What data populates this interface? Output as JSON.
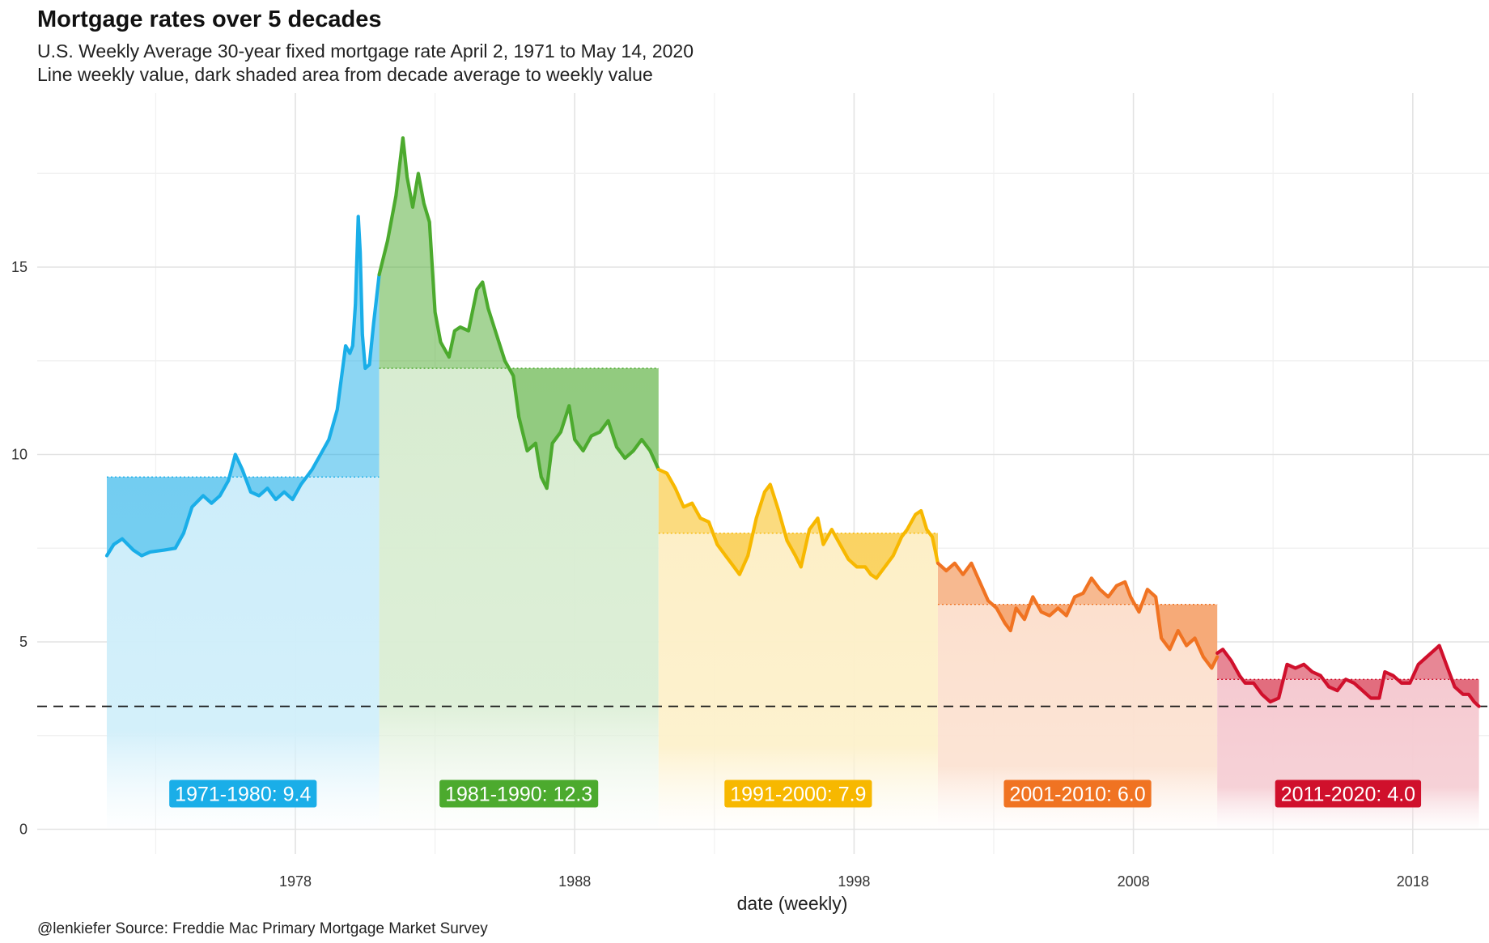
{
  "title": "Mortgage rates over 5 decades",
  "subtitle_line1": "U.S. Weekly Average 30-year fixed mortgage rate April 2, 1971 to May 14, 2020",
  "subtitle_line2": "Line weekly value, dark shaded area from decade average to weekly value",
  "caption": "@lenkiefer Source: Freddie Mac Primary Mortgage Market Survey",
  "chart_data": {
    "type": "line",
    "title": "Mortgage rates over 5 decades",
    "xlabel": "date (weekly)",
    "ylabel": "",
    "xlim": [
      1969.6,
      2022.9
    ],
    "ylim": [
      -0.8,
      19.7
    ],
    "x_ticks": [
      1978,
      1988,
      1998,
      2008,
      2018
    ],
    "x_tick_labels": [
      "1978",
      "1988",
      "1998",
      "2008",
      "2018"
    ],
    "y_ticks": [
      0,
      5,
      10,
      15
    ],
    "y_tick_labels": [
      "0",
      "5",
      "10",
      "15"
    ],
    "grid": true,
    "reference_line": {
      "value": 3.28,
      "style": "dashed"
    },
    "series": [
      {
        "name": "1971-1980",
        "label": "1971-1980:  9.4",
        "average": 9.4,
        "color": "#1aaee8",
        "start": 1971.25,
        "end": 1981.0,
        "points": [
          [
            1971.25,
            7.3
          ],
          [
            1971.5,
            7.6
          ],
          [
            1971.8,
            7.75
          ],
          [
            1972.2,
            7.45
          ],
          [
            1972.5,
            7.3
          ],
          [
            1972.8,
            7.4
          ],
          [
            1973.3,
            7.45
          ],
          [
            1973.7,
            7.5
          ],
          [
            1974.0,
            7.9
          ],
          [
            1974.3,
            8.6
          ],
          [
            1974.7,
            8.9
          ],
          [
            1975.0,
            8.7
          ],
          [
            1975.3,
            8.9
          ],
          [
            1975.6,
            9.3
          ],
          [
            1975.85,
            10.0
          ],
          [
            1976.1,
            9.6
          ],
          [
            1976.4,
            9.0
          ],
          [
            1976.7,
            8.9
          ],
          [
            1977.0,
            9.1
          ],
          [
            1977.3,
            8.8
          ],
          [
            1977.6,
            9.0
          ],
          [
            1977.9,
            8.8
          ],
          [
            1978.2,
            9.2
          ],
          [
            1978.6,
            9.6
          ],
          [
            1978.9,
            10.0
          ],
          [
            1979.2,
            10.4
          ],
          [
            1979.5,
            11.2
          ],
          [
            1979.8,
            12.9
          ],
          [
            1979.95,
            12.7
          ],
          [
            1980.05,
            12.9
          ],
          [
            1980.15,
            14.0
          ],
          [
            1980.25,
            16.35
          ],
          [
            1980.32,
            15.4
          ],
          [
            1980.4,
            13.2
          ],
          [
            1980.5,
            12.3
          ],
          [
            1980.65,
            12.4
          ],
          [
            1980.8,
            13.5
          ],
          [
            1981.0,
            14.8
          ]
        ]
      },
      {
        "name": "1981-1990",
        "label": "1981-1990: 12.3",
        "average": 12.3,
        "color": "#4caa2e",
        "start": 1981.0,
        "end": 1991.0,
        "points": [
          [
            1981.0,
            14.8
          ],
          [
            1981.3,
            15.7
          ],
          [
            1981.6,
            16.9
          ],
          [
            1981.85,
            18.45
          ],
          [
            1982.0,
            17.4
          ],
          [
            1982.2,
            16.6
          ],
          [
            1982.4,
            17.5
          ],
          [
            1982.6,
            16.7
          ],
          [
            1982.8,
            16.2
          ],
          [
            1983.0,
            13.8
          ],
          [
            1983.2,
            13.0
          ],
          [
            1983.5,
            12.6
          ],
          [
            1983.7,
            13.3
          ],
          [
            1983.9,
            13.4
          ],
          [
            1984.2,
            13.3
          ],
          [
            1984.5,
            14.4
          ],
          [
            1984.7,
            14.6
          ],
          [
            1984.9,
            13.9
          ],
          [
            1985.2,
            13.2
          ],
          [
            1985.5,
            12.5
          ],
          [
            1985.8,
            12.1
          ],
          [
            1986.0,
            11.0
          ],
          [
            1986.3,
            10.1
          ],
          [
            1986.6,
            10.3
          ],
          [
            1986.8,
            9.4
          ],
          [
            1987.0,
            9.1
          ],
          [
            1987.2,
            10.3
          ],
          [
            1987.5,
            10.6
          ],
          [
            1987.8,
            11.3
          ],
          [
            1988.0,
            10.4
          ],
          [
            1988.3,
            10.1
          ],
          [
            1988.6,
            10.5
          ],
          [
            1988.9,
            10.6
          ],
          [
            1989.2,
            10.9
          ],
          [
            1989.5,
            10.2
          ],
          [
            1989.8,
            9.9
          ],
          [
            1990.1,
            10.1
          ],
          [
            1990.4,
            10.4
          ],
          [
            1990.7,
            10.1
          ],
          [
            1991.0,
            9.6
          ]
        ]
      },
      {
        "name": "1991-2000",
        "label": "1991-2000:  7.9",
        "average": 7.9,
        "color": "#f7b800",
        "start": 1991.0,
        "end": 2001.0,
        "points": [
          [
            1991.0,
            9.6
          ],
          [
            1991.3,
            9.5
          ],
          [
            1991.6,
            9.1
          ],
          [
            1991.9,
            8.6
          ],
          [
            1992.2,
            8.7
          ],
          [
            1992.5,
            8.3
          ],
          [
            1992.8,
            8.2
          ],
          [
            1993.1,
            7.6
          ],
          [
            1993.4,
            7.3
          ],
          [
            1993.7,
            7.0
          ],
          [
            1993.9,
            6.8
          ],
          [
            1994.2,
            7.3
          ],
          [
            1994.5,
            8.3
          ],
          [
            1994.8,
            9.0
          ],
          [
            1995.0,
            9.2
          ],
          [
            1995.3,
            8.5
          ],
          [
            1995.6,
            7.7
          ],
          [
            1995.9,
            7.3
          ],
          [
            1996.1,
            7.0
          ],
          [
            1996.4,
            8.0
          ],
          [
            1996.7,
            8.3
          ],
          [
            1996.9,
            7.6
          ],
          [
            1997.2,
            8.0
          ],
          [
            1997.5,
            7.6
          ],
          [
            1997.8,
            7.2
          ],
          [
            1998.1,
            7.0
          ],
          [
            1998.4,
            7.0
          ],
          [
            1998.6,
            6.8
          ],
          [
            1998.8,
            6.7
          ],
          [
            1999.1,
            7.0
          ],
          [
            1999.4,
            7.3
          ],
          [
            1999.7,
            7.8
          ],
          [
            1999.9,
            8.0
          ],
          [
            2000.2,
            8.4
          ],
          [
            2000.4,
            8.5
          ],
          [
            2000.6,
            8.0
          ],
          [
            2000.8,
            7.8
          ],
          [
            2001.0,
            7.1
          ]
        ]
      },
      {
        "name": "2001-2010",
        "label": "2001-2010:  6.0",
        "average": 6.0,
        "color": "#f07322",
        "start": 2001.0,
        "end": 2011.0,
        "points": [
          [
            2001.0,
            7.1
          ],
          [
            2001.3,
            6.9
          ],
          [
            2001.6,
            7.1
          ],
          [
            2001.9,
            6.8
          ],
          [
            2002.2,
            7.1
          ],
          [
            2002.5,
            6.6
          ],
          [
            2002.8,
            6.1
          ],
          [
            2003.1,
            5.9
          ],
          [
            2003.4,
            5.5
          ],
          [
            2003.6,
            5.3
          ],
          [
            2003.8,
            5.9
          ],
          [
            2004.1,
            5.6
          ],
          [
            2004.4,
            6.2
          ],
          [
            2004.7,
            5.8
          ],
          [
            2005.0,
            5.7
          ],
          [
            2005.3,
            5.9
          ],
          [
            2005.6,
            5.7
          ],
          [
            2005.9,
            6.2
          ],
          [
            2006.2,
            6.3
          ],
          [
            2006.5,
            6.7
          ],
          [
            2006.8,
            6.4
          ],
          [
            2007.1,
            6.2
          ],
          [
            2007.4,
            6.5
          ],
          [
            2007.7,
            6.6
          ],
          [
            2007.9,
            6.2
          ],
          [
            2008.2,
            5.8
          ],
          [
            2008.5,
            6.4
          ],
          [
            2008.8,
            6.2
          ],
          [
            2009.0,
            5.1
          ],
          [
            2009.3,
            4.8
          ],
          [
            2009.6,
            5.3
          ],
          [
            2009.9,
            4.9
          ],
          [
            2010.2,
            5.1
          ],
          [
            2010.5,
            4.6
          ],
          [
            2010.8,
            4.3
          ],
          [
            2011.0,
            4.6
          ]
        ]
      },
      {
        "name": "2011-2020",
        "label": "2011-2020:  4.0",
        "average": 4.0,
        "color": "#d0102c",
        "start": 2011.0,
        "end": 2020.37,
        "points": [
          [
            2011.0,
            4.7
          ],
          [
            2011.2,
            4.8
          ],
          [
            2011.5,
            4.5
          ],
          [
            2011.8,
            4.1
          ],
          [
            2012.0,
            3.9
          ],
          [
            2012.3,
            3.9
          ],
          [
            2012.6,
            3.6
          ],
          [
            2012.9,
            3.4
          ],
          [
            2013.2,
            3.5
          ],
          [
            2013.5,
            4.4
          ],
          [
            2013.8,
            4.3
          ],
          [
            2014.1,
            4.4
          ],
          [
            2014.4,
            4.2
          ],
          [
            2014.7,
            4.1
          ],
          [
            2015.0,
            3.8
          ],
          [
            2015.3,
            3.7
          ],
          [
            2015.6,
            4.0
          ],
          [
            2015.9,
            3.9
          ],
          [
            2016.2,
            3.7
          ],
          [
            2016.5,
            3.5
          ],
          [
            2016.8,
            3.5
          ],
          [
            2017.0,
            4.2
          ],
          [
            2017.3,
            4.1
          ],
          [
            2017.6,
            3.9
          ],
          [
            2017.9,
            3.9
          ],
          [
            2018.2,
            4.4
          ],
          [
            2018.5,
            4.6
          ],
          [
            2018.8,
            4.8
          ],
          [
            2018.95,
            4.9
          ],
          [
            2019.2,
            4.4
          ],
          [
            2019.5,
            3.8
          ],
          [
            2019.8,
            3.6
          ],
          [
            2020.0,
            3.6
          ],
          [
            2020.2,
            3.4
          ],
          [
            2020.37,
            3.28
          ]
        ]
      }
    ]
  }
}
